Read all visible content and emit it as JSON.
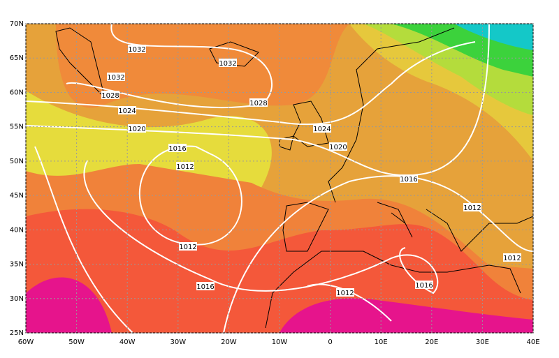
{
  "map": {
    "lon_labels": [
      "60W",
      "50W",
      "40W",
      "30W",
      "20W",
      "10W",
      "0",
      "10E",
      "20E",
      "30E",
      "40E"
    ],
    "lat_labels": [
      "70N",
      "65N",
      "60N",
      "55N",
      "50N",
      "45N",
      "40N",
      "35N",
      "30N",
      "25N"
    ],
    "contour_labels": [
      "1032",
      "1032",
      "1032",
      "1028",
      "1028",
      "1024",
      "1024",
      "1020",
      "1020",
      "1016",
      "1016",
      "1012",
      "1012",
      "1012",
      "1016",
      "1016",
      "1012",
      "1012"
    ]
  }
}
